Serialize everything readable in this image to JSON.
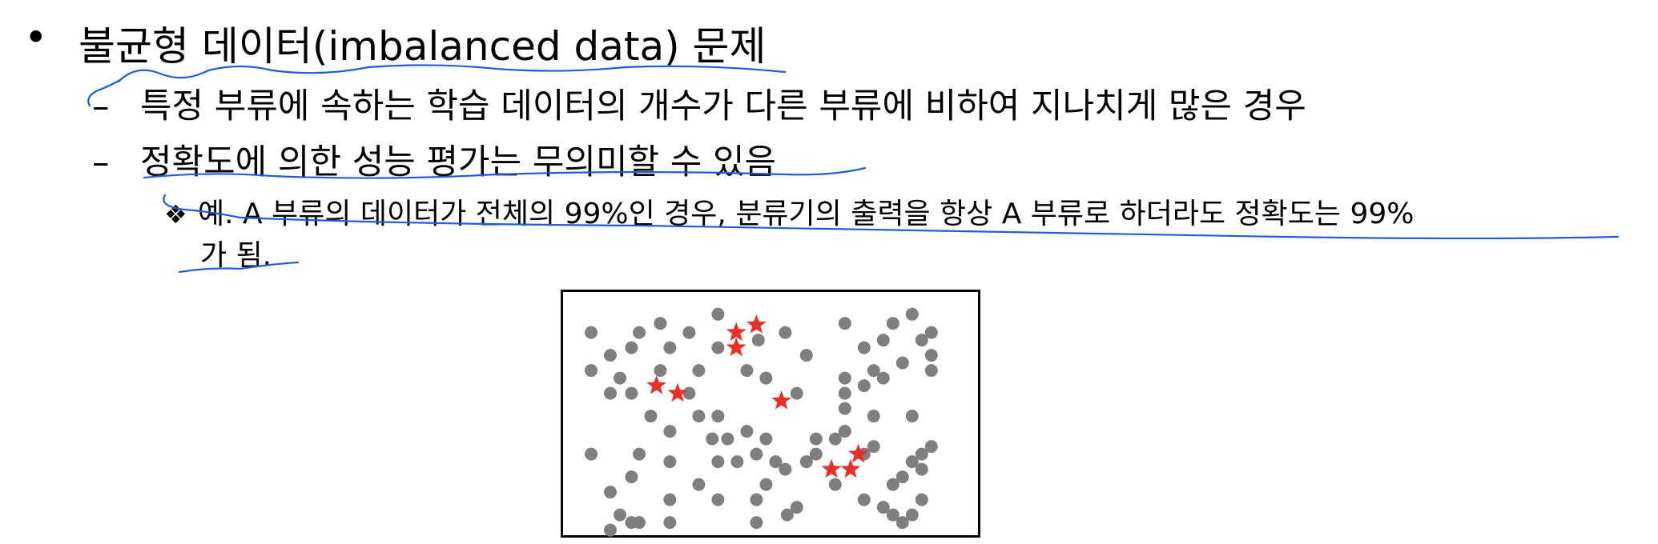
{
  "bullet_main": {
    "marker": "•",
    "text": "불균형 데이터(imbalanced data) 문제"
  },
  "sub_items": [
    {
      "marker": "–",
      "text": "특정 부류에 속하는 학습 데이터의 개수가 다른 부류에 비하여 지나치게 많은 경우"
    },
    {
      "marker": "–",
      "text": "정확도에 의한 성능 평가는 무의미할 수 있음"
    }
  ],
  "example": {
    "marker": "❖",
    "line1": "예. A 부류의 데이터가 전체의 99%인 경우, 분류기의 출력을 항상 A 부류로 하더라도 정확도는 99%",
    "line2": "가 됨."
  },
  "figure": {
    "majority_color": "#7f7f7f",
    "minority_color": "#e8302a",
    "majority_icon": "gray-circle-icon",
    "minority_icon": "red-star-icon"
  },
  "ink_color": "#1f5fd6"
}
